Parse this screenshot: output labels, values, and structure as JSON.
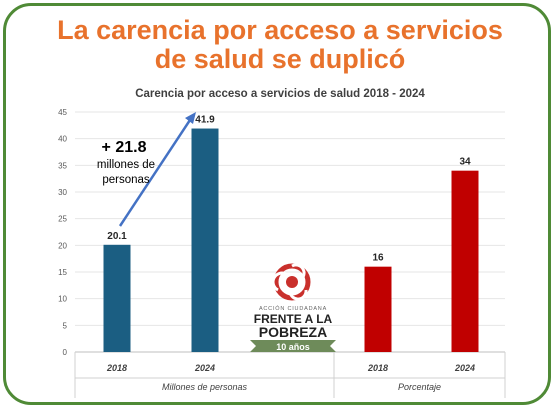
{
  "headline": {
    "line1": "La carencia por acceso a servicios",
    "line2": "de salud se duplicó"
  },
  "colors": {
    "headline": "#e8722c",
    "border": "#4f8a36",
    "millions_bar": "#1b5e82",
    "percent_bar": "#c00000",
    "arrow": "#4472c4"
  },
  "annotation": {
    "change": "+ 21.8",
    "line2": "millones de",
    "line3": "personas"
  },
  "logo": {
    "line1": "ACCIÓN CIUDADANA",
    "line2": "FRENTE A LA",
    "line3": "POBREZA",
    "ribbon": "10 años"
  },
  "chart_data": {
    "type": "bar",
    "title": "Carencia por acceso a servicios de salud 2018 - 2024",
    "ylim": [
      0,
      45
    ],
    "yticks": [
      0,
      5,
      10,
      15,
      20,
      25,
      30,
      35,
      40,
      45
    ],
    "grid": true,
    "groups": [
      {
        "name": "Millones de personas",
        "categories": [
          "2018",
          "2024"
        ],
        "values": [
          20.1,
          41.9
        ],
        "labels": [
          "20.1",
          "41.9"
        ]
      },
      {
        "name": "Porcentaje",
        "categories": [
          "2018",
          "2024"
        ],
        "values": [
          16,
          34
        ],
        "labels": [
          "16",
          "34"
        ]
      }
    ]
  }
}
